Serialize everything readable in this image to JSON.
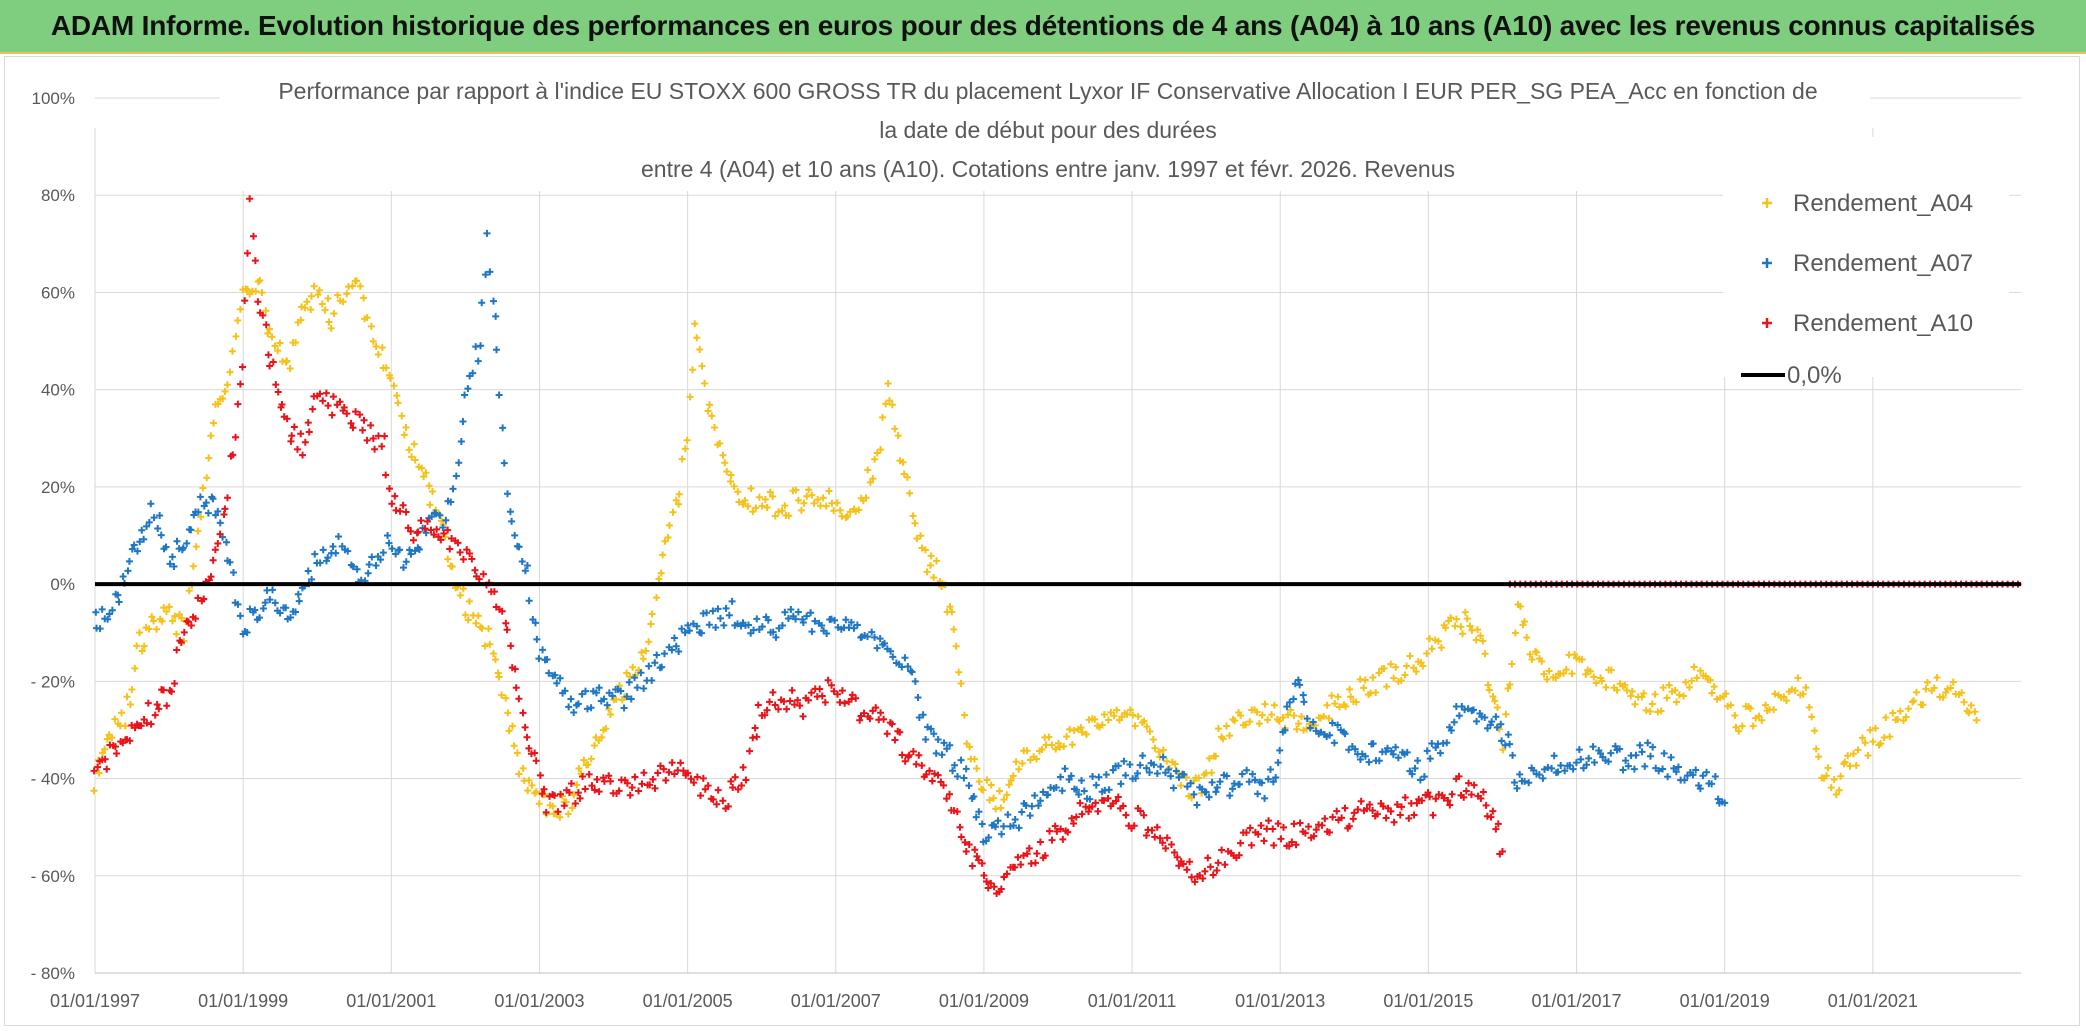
{
  "banner": {
    "title": "ADAM Informe. Evolution historique des performances en euros pour des détentions de 4 ans (A04) à 10 ans (A10) avec les revenus connus capitalisés"
  },
  "colors": {
    "banner_bg": "#7fce7f",
    "A04": "#f5c21b",
    "A07": "#1f77c4",
    "A10": "#e8141a",
    "zero_line": "#000000"
  },
  "chart_data": {
    "type": "scatter",
    "title_lines": [
      "Performance par rapport à l'indice EU STOXX 600 GROSS TR  du placement Lyxor IF Conservative Allocation I EUR PER_SG PEA_Acc en fonction de",
      "la date de début pour des durées",
      "entre 4 (A04) et 10 ans (A10). Cotations entre janv. 1997 et févr. 2026. Revenus"
    ],
    "xlabel": "",
    "ylabel": "",
    "x_range": [
      1997.0,
      2023.0
    ],
    "ylim": [
      -80,
      100
    ],
    "y_ticks": [
      100,
      80,
      60,
      40,
      20,
      0,
      -20,
      -40,
      -60,
      -80
    ],
    "y_tick_labels": [
      "100%",
      "80%",
      "60%",
      "40%",
      "20%",
      "0%",
      "- 20%",
      "- 40%",
      "- 60%",
      "- 80%"
    ],
    "x_ticks": [
      1997,
      1999,
      2001,
      2003,
      2005,
      2007,
      2009,
      2011,
      2013,
      2015,
      2017,
      2019,
      2021
    ],
    "x_tick_labels": [
      "01/01/1997",
      "01/01/1999",
      "01/01/2001",
      "01/01/2003",
      "01/01/2005",
      "01/01/2007",
      "01/01/2009",
      "01/01/2011",
      "01/01/2013",
      "01/01/2015",
      "01/01/2017",
      "01/01/2019",
      "01/01/2021"
    ],
    "grid": true,
    "legend_position": "top-right",
    "legend": [
      "Rendement_A04",
      "Rendement_A07",
      "Rendement_A10",
      "0,0%"
    ],
    "reference_line": {
      "name": "0,0%",
      "y": 0
    },
    "series": [
      {
        "name": "Rendement_A04",
        "color_key": "A04",
        "points": [
          [
            1997.0,
            -40
          ],
          [
            1997.2,
            -30
          ],
          [
            1997.4,
            -28
          ],
          [
            1997.6,
            -12
          ],
          [
            1997.8,
            -8
          ],
          [
            1998.0,
            -6
          ],
          [
            1998.2,
            -10
          ],
          [
            1998.4,
            10
          ],
          [
            1998.6,
            35
          ],
          [
            1998.8,
            40
          ],
          [
            1999.0,
            60
          ],
          [
            1999.2,
            62
          ],
          [
            1999.4,
            50
          ],
          [
            1999.6,
            45
          ],
          [
            1999.8,
            55
          ],
          [
            2000.0,
            60
          ],
          [
            2000.2,
            55
          ],
          [
            2000.5,
            63
          ],
          [
            2000.8,
            50
          ],
          [
            2001.0,
            42
          ],
          [
            2001.2,
            30
          ],
          [
            2001.4,
            25
          ],
          [
            2001.6,
            15
          ],
          [
            2001.8,
            5
          ],
          [
            2002.0,
            -5
          ],
          [
            2002.2,
            -8
          ],
          [
            2002.4,
            -15
          ],
          [
            2002.6,
            -30
          ],
          [
            2002.8,
            -40
          ],
          [
            2003.0,
            -45
          ],
          [
            2003.2,
            -47
          ],
          [
            2003.4,
            -45
          ],
          [
            2003.6,
            -38
          ],
          [
            2003.8,
            -30
          ],
          [
            2004.0,
            -25
          ],
          [
            2004.3,
            -18
          ],
          [
            2004.5,
            -10
          ],
          [
            2004.7,
            10
          ],
          [
            2004.9,
            20
          ],
          [
            2005.0,
            30
          ],
          [
            2005.1,
            52
          ],
          [
            2005.3,
            35
          ],
          [
            2005.5,
            25
          ],
          [
            2005.7,
            18
          ],
          [
            2006.0,
            17
          ],
          [
            2006.3,
            16
          ],
          [
            2006.6,
            18
          ],
          [
            2006.9,
            17
          ],
          [
            2007.2,
            15
          ],
          [
            2007.4,
            20
          ],
          [
            2007.6,
            28
          ],
          [
            2007.7,
            40
          ],
          [
            2007.9,
            25
          ],
          [
            2008.0,
            18
          ],
          [
            2008.2,
            5
          ],
          [
            2008.4,
            2
          ],
          [
            2008.6,
            -10
          ],
          [
            2008.8,
            -35
          ],
          [
            2009.0,
            -42
          ],
          [
            2009.2,
            -45
          ],
          [
            2009.4,
            -38
          ],
          [
            2009.7,
            -35
          ],
          [
            2010.0,
            -32
          ],
          [
            2010.3,
            -30
          ],
          [
            2010.6,
            -28
          ],
          [
            2010.9,
            -26
          ],
          [
            2011.2,
            -28
          ],
          [
            2011.5,
            -38
          ],
          [
            2011.8,
            -42
          ],
          [
            2012.0,
            -40
          ],
          [
            2012.2,
            -30
          ],
          [
            2012.5,
            -28
          ],
          [
            2012.8,
            -26
          ],
          [
            2013.1,
            -28
          ],
          [
            2013.4,
            -30
          ],
          [
            2013.7,
            -25
          ],
          [
            2014.0,
            -22
          ],
          [
            2014.3,
            -20
          ],
          [
            2014.6,
            -18
          ],
          [
            2014.9,
            -15
          ],
          [
            2015.2,
            -10
          ],
          [
            2015.5,
            -8
          ],
          [
            2015.7,
            -12
          ],
          [
            2015.9,
            -25
          ],
          [
            2016.0,
            -32
          ],
          [
            2016.2,
            -5
          ],
          [
            2016.4,
            -15
          ],
          [
            2016.6,
            -18
          ],
          [
            2016.9,
            -16
          ],
          [
            2017.2,
            -18
          ],
          [
            2017.5,
            -20
          ],
          [
            2017.8,
            -25
          ],
          [
            2018.1,
            -24
          ],
          [
            2018.4,
            -22
          ],
          [
            2018.7,
            -18
          ],
          [
            2018.9,
            -22
          ],
          [
            2019.2,
            -28
          ],
          [
            2019.5,
            -26
          ],
          [
            2019.8,
            -22
          ],
          [
            2020.1,
            -21
          ],
          [
            2020.3,
            -38
          ],
          [
            2020.5,
            -42
          ],
          [
            2020.7,
            -36
          ],
          [
            2021.0,
            -32
          ],
          [
            2021.3,
            -28
          ],
          [
            2021.6,
            -24
          ],
          [
            2021.9,
            -21
          ],
          [
            2022.2,
            -23
          ],
          [
            2022.4,
            -28
          ]
        ]
      },
      {
        "name": "Rendement_A07",
        "color_key": "A07",
        "points": [
          [
            1997.0,
            -8
          ],
          [
            1997.2,
            -5
          ],
          [
            1997.4,
            0
          ],
          [
            1997.6,
            10
          ],
          [
            1997.8,
            15
          ],
          [
            1998.0,
            5
          ],
          [
            1998.2,
            8
          ],
          [
            1998.4,
            15
          ],
          [
            1998.6,
            18
          ],
          [
            1998.8,
            5
          ],
          [
            1999.0,
            -10
          ],
          [
            1999.2,
            -5
          ],
          [
            1999.4,
            -3
          ],
          [
            1999.6,
            -5
          ],
          [
            1999.8,
            -2
          ],
          [
            2000.0,
            5
          ],
          [
            2000.3,
            8
          ],
          [
            2000.6,
            2
          ],
          [
            2000.9,
            8
          ],
          [
            2001.2,
            5
          ],
          [
            2001.5,
            12
          ],
          [
            2001.8,
            15
          ],
          [
            2001.9,
            25
          ],
          [
            2002.0,
            40
          ],
          [
            2002.2,
            50
          ],
          [
            2002.3,
            72
          ],
          [
            2002.4,
            55
          ],
          [
            2002.5,
            30
          ],
          [
            2002.6,
            15
          ],
          [
            2002.8,
            5
          ],
          [
            2003.0,
            -15
          ],
          [
            2003.2,
            -20
          ],
          [
            2003.5,
            -25
          ],
          [
            2003.8,
            -22
          ],
          [
            2004.1,
            -24
          ],
          [
            2004.4,
            -20
          ],
          [
            2004.7,
            -15
          ],
          [
            2005.0,
            -10
          ],
          [
            2005.3,
            -8
          ],
          [
            2005.6,
            -6
          ],
          [
            2005.9,
            -8
          ],
          [
            2006.2,
            -10
          ],
          [
            2006.5,
            -5
          ],
          [
            2006.8,
            -9
          ],
          [
            2007.1,
            -8
          ],
          [
            2007.4,
            -10
          ],
          [
            2007.7,
            -12
          ],
          [
            2008.0,
            -18
          ],
          [
            2008.2,
            -30
          ],
          [
            2008.5,
            -35
          ],
          [
            2008.8,
            -40
          ],
          [
            2009.0,
            -52
          ],
          [
            2009.2,
            -50
          ],
          [
            2009.5,
            -48
          ],
          [
            2009.8,
            -44
          ],
          [
            2010.1,
            -40
          ],
          [
            2010.4,
            -42
          ],
          [
            2010.7,
            -40
          ],
          [
            2011.0,
            -38
          ],
          [
            2011.3,
            -36
          ],
          [
            2011.6,
            -40
          ],
          [
            2011.9,
            -44
          ],
          [
            2012.2,
            -42
          ],
          [
            2012.5,
            -40
          ],
          [
            2012.8,
            -42
          ],
          [
            2013.0,
            -35
          ],
          [
            2013.2,
            -20
          ],
          [
            2013.4,
            -28
          ],
          [
            2013.7,
            -30
          ],
          [
            2014.0,
            -34
          ],
          [
            2014.3,
            -35
          ],
          [
            2014.6,
            -36
          ],
          [
            2014.9,
            -38
          ],
          [
            2015.2,
            -32
          ],
          [
            2015.5,
            -25
          ],
          [
            2015.8,
            -28
          ],
          [
            2016.0,
            -30
          ],
          [
            2016.2,
            -40
          ],
          [
            2016.5,
            -38
          ],
          [
            2016.8,
            -37
          ],
          [
            2017.1,
            -36
          ],
          [
            2017.4,
            -35
          ],
          [
            2017.7,
            -36
          ],
          [
            2018.0,
            -35
          ],
          [
            2018.3,
            -38
          ],
          [
            2018.6,
            -40
          ],
          [
            2018.9,
            -42
          ],
          [
            2019.0,
            -45
          ]
        ]
      },
      {
        "name": "Rendement_A10",
        "color_key": "A10",
        "points": [
          [
            1997.0,
            -40
          ],
          [
            1997.2,
            -35
          ],
          [
            1997.4,
            -32
          ],
          [
            1997.6,
            -28
          ],
          [
            1997.8,
            -26
          ],
          [
            1998.0,
            -22
          ],
          [
            1998.2,
            -10
          ],
          [
            1998.4,
            -5
          ],
          [
            1998.6,
            5
          ],
          [
            1998.8,
            20
          ],
          [
            1999.0,
            45
          ],
          [
            1999.1,
            78
          ],
          [
            1999.2,
            58
          ],
          [
            1999.4,
            45
          ],
          [
            1999.6,
            32
          ],
          [
            1999.8,
            28
          ],
          [
            2000.0,
            38
          ],
          [
            2000.3,
            36
          ],
          [
            2000.6,
            32
          ],
          [
            2000.9,
            28
          ],
          [
            2001.0,
            18
          ],
          [
            2001.3,
            10
          ],
          [
            2001.6,
            12
          ],
          [
            2001.9,
            8
          ],
          [
            2002.2,
            2
          ],
          [
            2002.5,
            -5
          ],
          [
            2002.7,
            -20
          ],
          [
            2002.9,
            -35
          ],
          [
            2003.1,
            -45
          ],
          [
            2003.4,
            -44
          ],
          [
            2003.7,
            -40
          ],
          [
            2004.0,
            -42
          ],
          [
            2004.3,
            -41
          ],
          [
            2004.6,
            -40
          ],
          [
            2004.9,
            -38
          ],
          [
            2005.2,
            -42
          ],
          [
            2005.5,
            -44
          ],
          [
            2005.8,
            -38
          ],
          [
            2006.0,
            -25
          ],
          [
            2006.3,
            -23
          ],
          [
            2006.6,
            -25
          ],
          [
            2006.9,
            -22
          ],
          [
            2007.2,
            -25
          ],
          [
            2007.5,
            -27
          ],
          [
            2007.8,
            -30
          ],
          [
            2008.0,
            -36
          ],
          [
            2008.3,
            -40
          ],
          [
            2008.6,
            -45
          ],
          [
            2008.8,
            -55
          ],
          [
            2009.0,
            -60
          ],
          [
            2009.2,
            -62
          ],
          [
            2009.5,
            -58
          ],
          [
            2009.8,
            -54
          ],
          [
            2010.1,
            -50
          ],
          [
            2010.4,
            -46
          ],
          [
            2010.7,
            -44
          ],
          [
            2011.0,
            -48
          ],
          [
            2011.3,
            -50
          ],
          [
            2011.6,
            -55
          ],
          [
            2011.8,
            -60
          ],
          [
            2012.1,
            -58
          ],
          [
            2012.4,
            -55
          ],
          [
            2012.7,
            -50
          ],
          [
            2013.0,
            -52
          ],
          [
            2013.3,
            -51
          ],
          [
            2013.6,
            -50
          ],
          [
            2013.9,
            -48
          ],
          [
            2014.2,
            -46
          ],
          [
            2014.5,
            -47
          ],
          [
            2014.8,
            -46
          ],
          [
            2015.1,
            -45
          ],
          [
            2015.4,
            -42
          ],
          [
            2015.7,
            -44
          ],
          [
            2015.9,
            -50
          ],
          [
            2016.0,
            -55
          ]
        ]
      },
      {
        "name": "Rendement_A10_flat",
        "color_key": "A10",
        "flat": {
          "y": 0,
          "x_start": 2016.1,
          "x_end": 2023.0,
          "step": 0.07
        }
      }
    ]
  }
}
